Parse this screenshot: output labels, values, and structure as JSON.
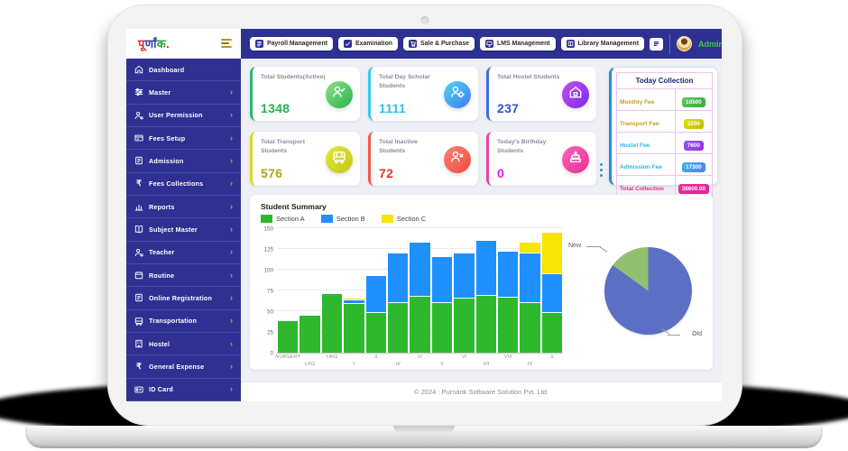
{
  "logo": {
    "part1": "पू",
    "part2": "र्णां",
    "part3": "क",
    "dot": ".",
    "colors": [
      "#d32f2f",
      "#3340a8",
      "#2e9e3e"
    ]
  },
  "topbar": {
    "buttons": [
      {
        "label": "Payroll Management",
        "icon": "payroll-icon"
      },
      {
        "label": "Examination",
        "icon": "examination-icon"
      },
      {
        "label": "Sale & Purchase",
        "icon": "sale-purchase-icon"
      },
      {
        "label": "LMS Management",
        "icon": "lms-icon"
      },
      {
        "label": "Library Management",
        "icon": "library-icon"
      }
    ],
    "admin_label": "Admin",
    "admin_color": "#35d435"
  },
  "sidebar": {
    "items": [
      {
        "label": "Dashboard",
        "icon": "home-icon",
        "chevron": false
      },
      {
        "label": "Master",
        "icon": "sliders-icon",
        "chevron": true
      },
      {
        "label": "User Permission",
        "icon": "user-icon",
        "chevron": true
      },
      {
        "label": "Fees Setup",
        "icon": "fees-card-icon",
        "chevron": true
      },
      {
        "label": "Admission",
        "icon": "form-icon",
        "chevron": true
      },
      {
        "label": "Fees Collections",
        "icon": "rupee-icon",
        "chevron": true
      },
      {
        "label": "Reports",
        "icon": "report-chart-icon",
        "chevron": true
      },
      {
        "label": "Subject Master",
        "icon": "book-icon",
        "chevron": true
      },
      {
        "label": "Teacher",
        "icon": "user-icon",
        "chevron": true
      },
      {
        "label": "Routine",
        "icon": "calendar-icon",
        "chevron": true
      },
      {
        "label": "Online Registration",
        "icon": "form-icon",
        "chevron": true
      },
      {
        "label": "Transportation",
        "icon": "bus-icon",
        "chevron": true
      },
      {
        "label": "Hostel",
        "icon": "building-icon",
        "chevron": true
      },
      {
        "label": "General Expense",
        "icon": "rupee-icon",
        "chevron": true
      },
      {
        "label": "ID Card",
        "icon": "idcard-icon",
        "chevron": true
      }
    ]
  },
  "stat_cards": [
    {
      "label": "Total Students(Active)",
      "value": "1348",
      "accent": "#2bb673",
      "value_color": "#22b14c",
      "icon": "student-active-icon",
      "icon_bg": [
        "#8ee08a",
        "#2bb24c"
      ]
    },
    {
      "label": "Total Day Scholar Students",
      "value": "1111",
      "accent": "#35c8ee",
      "value_color": "#2fc0ec",
      "icon": "day-scholar-icon",
      "icon_bg": [
        "#55d4f0",
        "#3d7bf5"
      ]
    },
    {
      "label": "Total Hostel Students",
      "value": "237",
      "accent": "#3a6fd8",
      "value_color": "#2f55cc",
      "icon": "hostel-home-icon",
      "icon_bg": [
        "#c44df0",
        "#7a2bea"
      ]
    },
    {
      "label": "Total Transport Students",
      "value": "576",
      "accent": "#d9d926",
      "value_color": "#a9a912",
      "icon": "transport-bus-icon",
      "icon_bg": [
        "#e0e83a",
        "#c2c910"
      ]
    },
    {
      "label": "Total Inactive Students",
      "value": "72",
      "accent": "#f15a4a",
      "value_color": "#e8352b",
      "icon": "student-inactive-icon",
      "icon_bg": [
        "#f8837a",
        "#ee4b3e"
      ]
    },
    {
      "label": "Today's Birthday Students",
      "value": "0",
      "accent": "#ef3fa7",
      "value_color": "#f016d8",
      "icon": "birthday-cake-icon",
      "icon_bg": [
        "#f667b5",
        "#ec2f96"
      ]
    }
  ],
  "today_collection": {
    "title": "Today Collection",
    "rows": [
      {
        "label": "Monthly Fee",
        "value": "10500",
        "label_color": "#c99b1d",
        "badge": [
          "#62c55c",
          "#3aa843"
        ]
      },
      {
        "label": "Transport Fee",
        "value": "3200",
        "label_color": "#c99b1d",
        "badge": [
          "#dede10",
          "#bebe08"
        ]
      },
      {
        "label": "Hostel Fee",
        "value": "7600",
        "label_color": "#2ab4e8",
        "badge": [
          "#8a5cf5",
          "#9a2de2"
        ]
      },
      {
        "label": "Admission Fee",
        "value": "17300",
        "label_color": "#2ab4e8",
        "badge": [
          "#3fb3ea",
          "#4f7ef2"
        ]
      },
      {
        "label": "Total Collection",
        "value": "38600.00",
        "label_color": "#f0268c",
        "badge": [
          "#ec2f9e",
          "#e0209a"
        ]
      }
    ]
  },
  "chart_data": [
    {
      "type": "bar",
      "stacked": true,
      "title": "Student Summary",
      "categories": [
        "NURSERY",
        "LKG",
        "UKG",
        "I",
        "II",
        "III",
        "IV",
        "V",
        "VI",
        "VII",
        "VIII",
        "IX",
        "X"
      ],
      "series": [
        {
          "name": "Section A",
          "color": "#2eb82e",
          "values": [
            38,
            45,
            71,
            59,
            48,
            60,
            67,
            60,
            65,
            68,
            66,
            60,
            48
          ]
        },
        {
          "name": "Section B",
          "color": "#1e90ff",
          "values": [
            0,
            0,
            0,
            4,
            44,
            60,
            66,
            55,
            55,
            67,
            56,
            60,
            47
          ]
        },
        {
          "name": "Section C",
          "color": "#f7e400",
          "values": [
            0,
            0,
            0,
            2,
            0,
            0,
            0,
            0,
            0,
            0,
            0,
            13,
            50
          ]
        }
      ],
      "xlabel": "",
      "ylabel": "",
      "ylim": [
        0,
        150
      ],
      "yticks": [
        0,
        25,
        50,
        75,
        100,
        125,
        150
      ],
      "grid": true,
      "legend_position": "top"
    },
    {
      "type": "pie",
      "labels": [
        "New",
        "Old"
      ],
      "values": [
        15,
        85
      ],
      "colors": [
        "#93bf73",
        "#5b6fc4"
      ]
    }
  ],
  "footer": {
    "copyright": "© 2024 : Purnank Software Solution Pvt. Ltd."
  }
}
